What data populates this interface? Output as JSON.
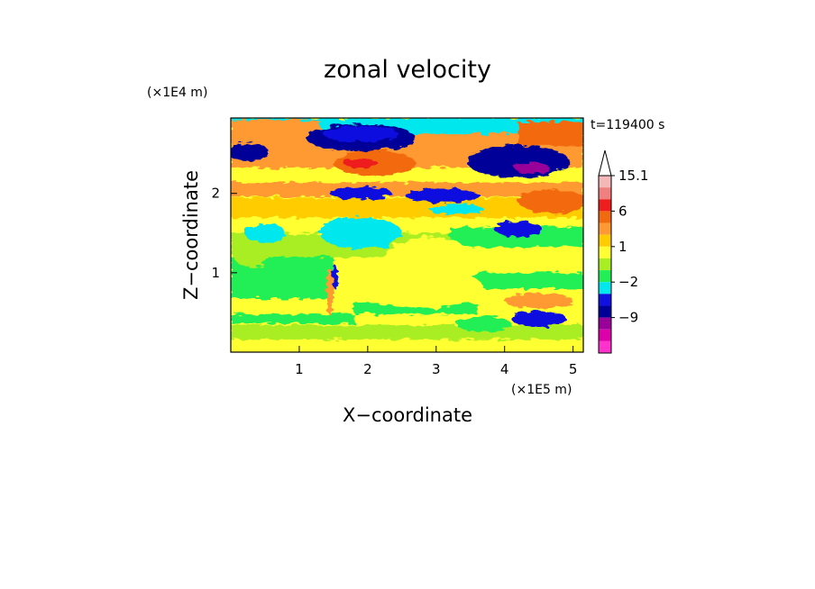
{
  "chart_data": {
    "type": "heatmap",
    "title": "zonal velocity",
    "xlabel": "X−coordinate",
    "ylabel": "Z−coordinate",
    "x_unit": "(×1E5 m)",
    "y_unit": "(×1E4 m)",
    "time_label": "t=119400 s",
    "xlim": [
      0,
      5.15
    ],
    "ylim": [
      0,
      2.95
    ],
    "x_ticks": [
      {
        "value": 1,
        "label": "1"
      },
      {
        "value": 2,
        "label": "2"
      },
      {
        "value": 3,
        "label": "3"
      },
      {
        "value": 4,
        "label": "4"
      },
      {
        "value": 5,
        "label": "5"
      }
    ],
    "y_ticks": [
      {
        "value": 1,
        "label": "1"
      },
      {
        "value": 2,
        "label": "2"
      }
    ],
    "colorbar": {
      "levels": [
        {
          "upper": 15.1,
          "color": "#f4b8b8"
        },
        {
          "upper": 12,
          "color": "#f08080"
        },
        {
          "upper": 9,
          "color": "#ee1e1e"
        },
        {
          "upper": 6,
          "color": "#f26a10"
        },
        {
          "upper": 3,
          "color": "#ff9933"
        },
        {
          "upper": 2,
          "color": "#ffcc00"
        },
        {
          "upper": 1,
          "color": "#ffff33"
        },
        {
          "upper": 0,
          "color": "#a8ee22"
        },
        {
          "upper": -1,
          "color": "#22ee55"
        },
        {
          "upper": -2,
          "color": "#00e8ee"
        },
        {
          "upper": -3,
          "color": "#1010e0"
        },
        {
          "upper": -6,
          "color": "#000099"
        },
        {
          "upper": -9,
          "color": "#990099"
        },
        {
          "upper": -12,
          "color": "#dd00aa"
        },
        {
          "upper": -15,
          "color": "#ff33cc"
        }
      ],
      "tick_labels": [
        {
          "value": 15.1,
          "label": "15.1"
        },
        {
          "value": 6,
          "label": "6"
        },
        {
          "value": 1,
          "label": "1"
        },
        {
          "value": -2,
          "label": "−2"
        },
        {
          "value": -9,
          "label": "−9"
        }
      ],
      "extend": "max"
    },
    "field_colors": {
      "background": "#ffff33",
      "green": "#22ee55",
      "lime": "#a8ee22",
      "yellow": "#ffff33",
      "gold": "#ffcc00",
      "orange": "#ff9933",
      "darkorange": "#f26a10",
      "red": "#ee1e1e",
      "cyan": "#00e8ee",
      "blue": "#1010e0",
      "navy": "#000099",
      "purple": "#990099"
    },
    "features": [
      {
        "level": "orange",
        "x": [
          0,
          5.15
        ],
        "y": [
          2.38,
          2.95
        ],
        "name": "upper-orange-band"
      },
      {
        "level": "navy",
        "x": [
          1.35,
          2.6
        ],
        "y": [
          2.55,
          2.85
        ],
        "name": "upper-left-jet"
      },
      {
        "level": "blue",
        "x": [
          0.0,
          0.55
        ],
        "y": [
          2.35,
          2.65
        ],
        "name": "left-edge-jet"
      },
      {
        "level": "red",
        "x": [
          1.5,
          2.6
        ],
        "y": [
          2.2,
          2.55
        ],
        "name": "upper-red-core"
      },
      {
        "level": "navy",
        "x": [
          3.35,
          5.0
        ],
        "y": [
          2.15,
          2.7
        ],
        "name": "upper-right-jet"
      },
      {
        "level": "blue",
        "x": [
          1.4,
          2.4
        ],
        "y": [
          1.95,
          2.15
        ],
        "name": "mid-left-jet"
      },
      {
        "level": "blue",
        "x": [
          2.7,
          3.8
        ],
        "y": [
          1.7,
          2.1
        ],
        "name": "mid-center-jet"
      },
      {
        "level": "darkorange",
        "x": [
          4.2,
          5.15
        ],
        "y": [
          1.75,
          2.1
        ],
        "name": "mid-right-orange"
      },
      {
        "level": "blue",
        "x": [
          4.35,
          4.85
        ],
        "y": [
          0.36,
          0.5
        ],
        "name": "lower-right-blue-spot"
      },
      {
        "level": "green",
        "x": [
          0,
          1.6
        ],
        "y": [
          0.7,
          1.7
        ],
        "name": "lower-left-green"
      },
      {
        "level": "cyan",
        "x": [
          1.1,
          2.3
        ],
        "y": [
          1.2,
          1.7
        ],
        "name": "mid-cyan-patch"
      }
    ]
  }
}
